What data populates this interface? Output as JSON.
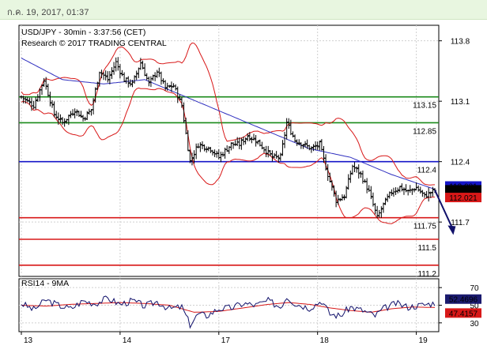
{
  "header": {
    "timestamp": "ก.ค. 19, 2017, 01:37"
  },
  "chart_data": {
    "type": "candlestick",
    "title": "USD/JPY - 30min - 3:37:56 (CET)",
    "subtitle": "Research © 2017 TRADING CENTRAL",
    "ylim": [
      111.07,
      113.98
    ],
    "y_ticks": [
      {
        "label": "113.8",
        "value": 113.8
      },
      {
        "label": "113.1",
        "value": 113.1
      },
      {
        "label": "112.4",
        "value": 112.4
      },
      {
        "label": "111.7",
        "value": 111.7
      }
    ],
    "x_ticks": [
      {
        "label": "13",
        "index": 0
      },
      {
        "label": "14",
        "index": 48
      },
      {
        "label": "17",
        "index": 96
      },
      {
        "label": "18",
        "index": 144
      },
      {
        "label": "19",
        "index": 192
      }
    ],
    "n_bars": 202,
    "levels": [
      {
        "label": "113.15",
        "value": 113.15,
        "color": "#1a8a1a"
      },
      {
        "label": "112.85",
        "value": 112.85,
        "color": "#1a8a1a"
      },
      {
        "label": "112.4",
        "value": 112.4,
        "color": "#1515c8"
      },
      {
        "label": "111.75",
        "value": 111.75,
        "color": "#d81818"
      },
      {
        "label": "111.5",
        "value": 111.5,
        "color": "#d81818"
      },
      {
        "label": "111.2",
        "value": 111.2,
        "color": "#d81818"
      }
    ],
    "price_tags": [
      {
        "label": "112.081",
        "value": 112.081,
        "color": "#1515c8"
      },
      {
        "label": "112.073",
        "value": 112.073,
        "color": "#000000"
      },
      {
        "label": "112.021",
        "value": 112.021,
        "color": "#d81818"
      }
    ],
    "price_path": [
      [
        0,
        113.15
      ],
      [
        6,
        113.05
      ],
      [
        11,
        113.35
      ],
      [
        16,
        112.95
      ],
      [
        20,
        112.85
      ],
      [
        26,
        113.0
      ],
      [
        30,
        112.9
      ],
      [
        34,
        113.0
      ],
      [
        38,
        113.45
      ],
      [
        42,
        113.35
      ],
      [
        46,
        113.55
      ],
      [
        50,
        113.35
      ],
      [
        54,
        113.3
      ],
      [
        58,
        113.55
      ],
      [
        62,
        113.3
      ],
      [
        66,
        113.45
      ],
      [
        70,
        113.25
      ],
      [
        74,
        113.28
      ],
      [
        78,
        113.05
      ],
      [
        82,
        112.4
      ],
      [
        86,
        112.6
      ],
      [
        92,
        112.55
      ],
      [
        96,
        112.45
      ],
      [
        102,
        112.6
      ],
      [
        106,
        112.6
      ],
      [
        110,
        112.7
      ],
      [
        114,
        112.65
      ],
      [
        118,
        112.55
      ],
      [
        122,
        112.45
      ],
      [
        126,
        112.45
      ],
      [
        129,
        112.85
      ],
      [
        133,
        112.65
      ],
      [
        137,
        112.6
      ],
      [
        141,
        112.55
      ],
      [
        145,
        112.6
      ],
      [
        149,
        112.25
      ],
      [
        153,
        111.95
      ],
      [
        157,
        112.0
      ],
      [
        161,
        112.35
      ],
      [
        165,
        112.25
      ],
      [
        169,
        112.05
      ],
      [
        173,
        111.75
      ],
      [
        176,
        111.9
      ],
      [
        180,
        112.05
      ],
      [
        184,
        112.1
      ],
      [
        188,
        112.05
      ],
      [
        192,
        112.1
      ],
      [
        196,
        112.0
      ],
      [
        201,
        112.07
      ]
    ],
    "ma_path": [
      [
        0,
        113.6
      ],
      [
        20,
        113.35
      ],
      [
        40,
        113.3
      ],
      [
        60,
        113.35
      ],
      [
        80,
        113.15
      ],
      [
        100,
        112.95
      ],
      [
        120,
        112.75
      ],
      [
        140,
        112.55
      ],
      [
        160,
        112.45
      ],
      [
        180,
        112.25
      ],
      [
        201,
        112.08
      ]
    ],
    "forecast_arrow": {
      "from": [
        201,
        112.07
      ],
      "to": [
        210,
        111.55
      ]
    },
    "rsi": {
      "label": "RSI14 - 9MA",
      "ylim": [
        20,
        80
      ],
      "y_ticks": [
        {
          "label": "70",
          "value": 70
        },
        {
          "label": "50",
          "value": 50
        },
        {
          "label": "30",
          "value": 30
        }
      ],
      "current": {
        "label": "52.4696",
        "value": 52.47
      },
      "ma_current": {
        "label": "47.4157",
        "value": 47.42
      },
      "path": [
        [
          0,
          52
        ],
        [
          6,
          45
        ],
        [
          12,
          56
        ],
        [
          18,
          50
        ],
        [
          24,
          46
        ],
        [
          30,
          55
        ],
        [
          36,
          52
        ],
        [
          42,
          58
        ],
        [
          48,
          51
        ],
        [
          54,
          55
        ],
        [
          60,
          49
        ],
        [
          66,
          54
        ],
        [
          72,
          46
        ],
        [
          78,
          48
        ],
        [
          82,
          28
        ],
        [
          86,
          40
        ],
        [
          90,
          38
        ],
        [
          96,
          46
        ],
        [
          102,
          47
        ],
        [
          108,
          52
        ],
        [
          114,
          50
        ],
        [
          120,
          55
        ],
        [
          126,
          48
        ],
        [
          129,
          60
        ],
        [
          133,
          52
        ],
        [
          140,
          47
        ],
        [
          146,
          55
        ],
        [
          150,
          40
        ],
        [
          155,
          38
        ],
        [
          160,
          48
        ],
        [
          166,
          44
        ],
        [
          172,
          38
        ],
        [
          176,
          46
        ],
        [
          182,
          52
        ],
        [
          188,
          48
        ],
        [
          194,
          50
        ],
        [
          201,
          52.5
        ]
      ],
      "ma_path": [
        [
          0,
          50
        ],
        [
          12,
          49
        ],
        [
          24,
          51
        ],
        [
          36,
          52
        ],
        [
          48,
          53
        ],
        [
          60,
          52
        ],
        [
          72,
          50
        ],
        [
          84,
          42
        ],
        [
          96,
          43
        ],
        [
          108,
          47
        ],
        [
          120,
          51
        ],
        [
          130,
          53
        ],
        [
          140,
          51
        ],
        [
          150,
          47
        ],
        [
          160,
          44
        ],
        [
          170,
          42
        ],
        [
          180,
          46
        ],
        [
          190,
          48
        ],
        [
          201,
          47.4
        ]
      ]
    }
  }
}
